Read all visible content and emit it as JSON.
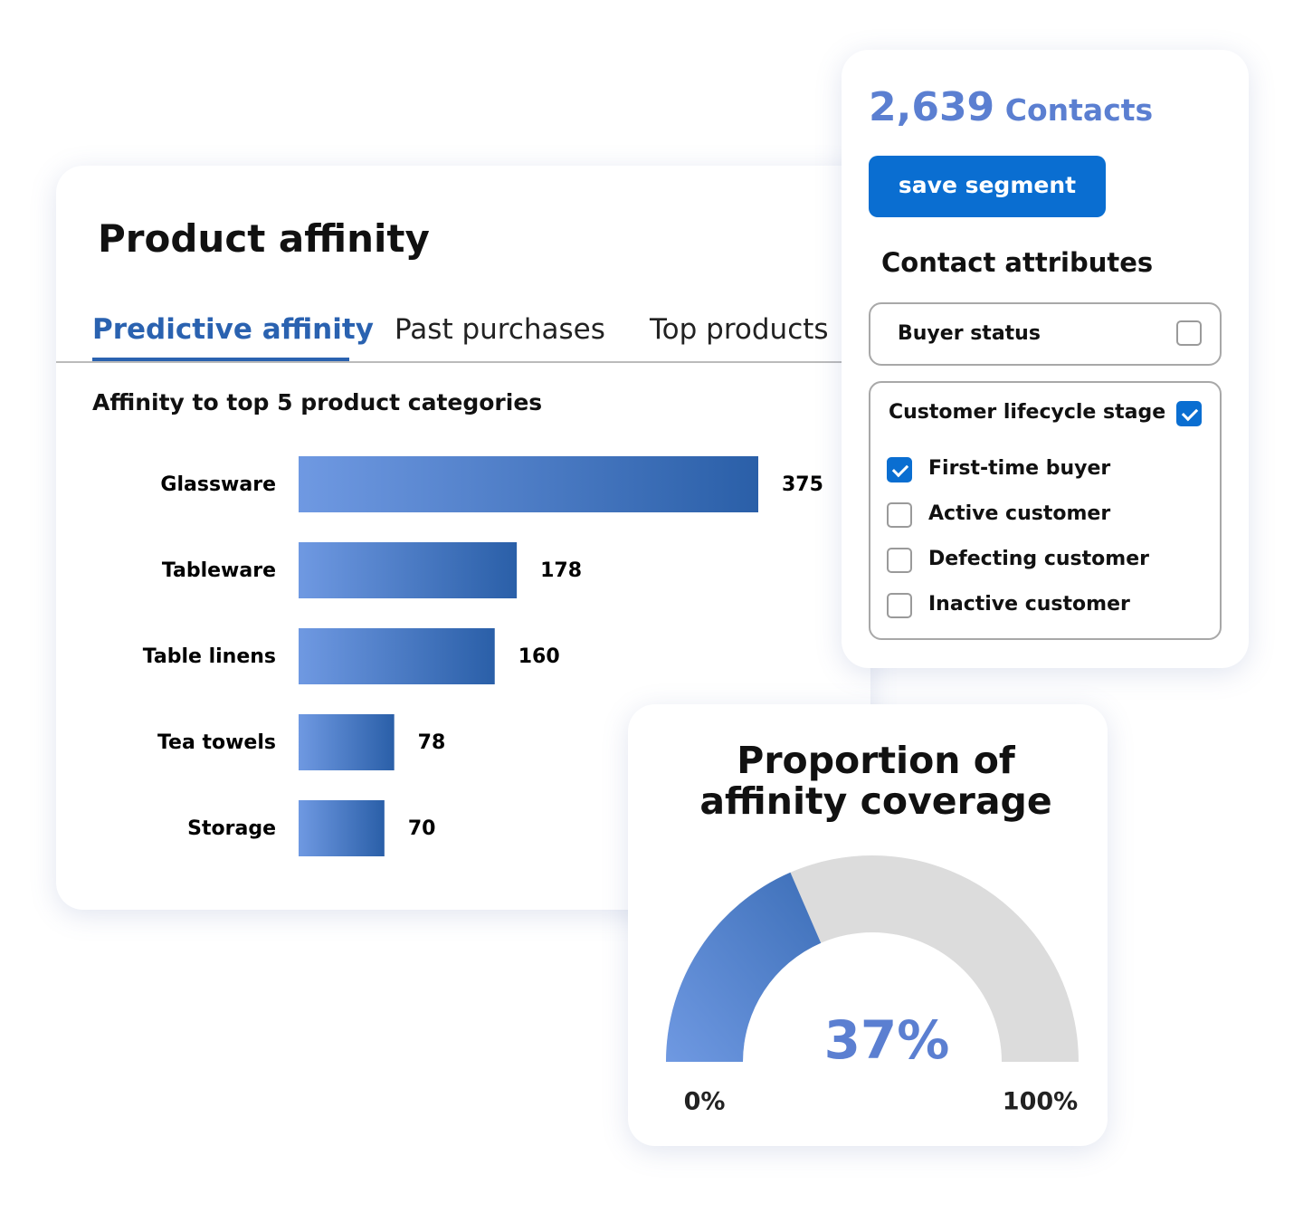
{
  "contacts": {
    "count": "2,639",
    "label": "Contacts"
  },
  "save_button": "save segment",
  "attributes": {
    "title": "Contact attributes",
    "filters": [
      {
        "label": "Buyer status",
        "checked": false
      },
      {
        "label": "Customer lifecycle stage",
        "checked": true,
        "options": [
          {
            "label": "First-time buyer",
            "checked": true
          },
          {
            "label": "Active customer",
            "checked": false
          },
          {
            "label": "Defecting customer",
            "checked": false
          },
          {
            "label": "Inactive customer",
            "checked": false
          }
        ]
      }
    ]
  },
  "product_affinity": {
    "title": "Product affinity",
    "tabs": [
      "Predictive affinity",
      "Past purchases",
      "Top products"
    ],
    "active_tab": 0
  },
  "chart_data": [
    {
      "type": "bar",
      "orientation": "horizontal",
      "title": "Affinity to top 5 product categories",
      "categories": [
        "Glassware",
        "Tableware",
        "Table linens",
        "Tea towels",
        "Storage"
      ],
      "values": [
        375,
        178,
        160,
        78,
        70
      ],
      "color": [
        "#6f99e2",
        "#2a5fa8"
      ]
    },
    {
      "type": "gauge",
      "title": "Proportion of affinity coverage",
      "values": [
        37
      ],
      "value_labels": [
        "37%"
      ],
      "ylim": [
        0,
        100
      ],
      "yticks": [
        {
          "value": 0,
          "label": "0%"
        },
        {
          "value": 100,
          "label": "100%"
        }
      ],
      "color": [
        "#6f99e2",
        "#3d6fb8"
      ],
      "track_color": "#dcdcdc"
    }
  ]
}
